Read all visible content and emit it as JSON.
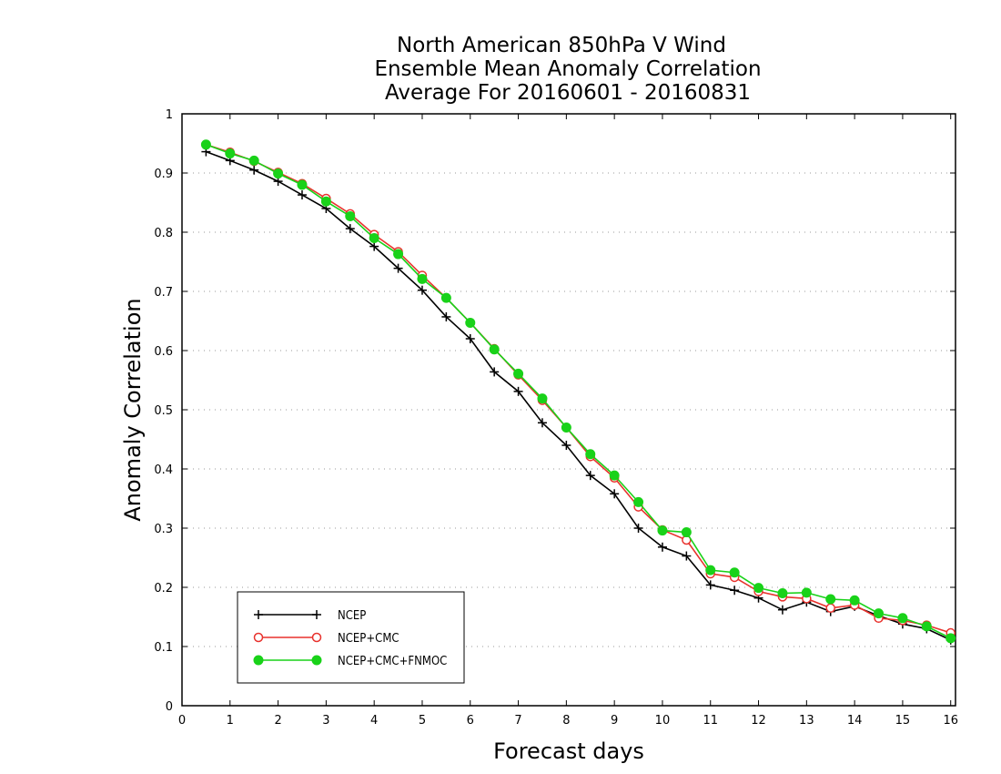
{
  "chart_data": {
    "type": "line",
    "title": [
      "North American 850hPa V Wind",
      "Ensemble Mean Anomaly Correlation",
      "Average For 20160601 - 20160831"
    ],
    "xlabel": "Forecast days",
    "ylabel": "Anomaly Correlation",
    "xlim": [
      0,
      16.1
    ],
    "ylim": [
      0,
      1
    ],
    "x_ticks": [
      "0",
      "1",
      "2",
      "3",
      "4",
      "5",
      "6",
      "7",
      "8",
      "9",
      "10",
      "11",
      "12",
      "13",
      "14",
      "15",
      "16"
    ],
    "y_ticks": [
      "0",
      "0.1",
      "0.2",
      "0.3",
      "0.4",
      "0.5",
      "0.6",
      "0.7",
      "0.8",
      "0.9",
      "1"
    ],
    "grid": "dotted-horizontal",
    "legend_position": "bottom-left",
    "x": [
      0.5,
      1,
      1.5,
      2,
      2.5,
      3,
      3.5,
      4,
      4.5,
      5,
      5.5,
      6,
      6.5,
      7,
      7.5,
      8,
      8.5,
      9,
      9.5,
      10,
      10.5,
      11,
      11.5,
      12,
      12.5,
      13,
      13.5,
      14,
      14.5,
      15,
      15.5,
      16
    ],
    "series": [
      {
        "name": "NCEP",
        "color": "#000000",
        "marker": "plus",
        "values": [
          0.936,
          0.921,
          0.905,
          0.886,
          0.863,
          0.84,
          0.806,
          0.776,
          0.739,
          0.702,
          0.657,
          0.62,
          0.564,
          0.531,
          0.478,
          0.44,
          0.389,
          0.358,
          0.3,
          0.268,
          0.253,
          0.204,
          0.195,
          0.182,
          0.162,
          0.175,
          0.159,
          0.168,
          0.152,
          0.138,
          0.13,
          0.111
        ]
      },
      {
        "name": "NCEP+CMC",
        "color": "#e8322d",
        "marker": "open-circle",
        "values": [
          0.948,
          0.935,
          0.92,
          0.901,
          0.882,
          0.857,
          0.831,
          0.796,
          0.767,
          0.727,
          0.689,
          0.647,
          0.603,
          0.559,
          0.516,
          0.47,
          0.421,
          0.385,
          0.336,
          0.297,
          0.28,
          0.223,
          0.217,
          0.193,
          0.184,
          0.181,
          0.165,
          0.17,
          0.148,
          0.144,
          0.136,
          0.123
        ]
      },
      {
        "name": "NCEP+CMC+FNMOC",
        "color": "#19d219",
        "marker": "filled-circle",
        "values": [
          0.948,
          0.933,
          0.921,
          0.899,
          0.88,
          0.852,
          0.827,
          0.79,
          0.763,
          0.721,
          0.689,
          0.647,
          0.602,
          0.561,
          0.519,
          0.47,
          0.425,
          0.389,
          0.344,
          0.296,
          0.293,
          0.229,
          0.225,
          0.199,
          0.19,
          0.191,
          0.18,
          0.178,
          0.156,
          0.148,
          0.134,
          0.114
        ]
      }
    ]
  }
}
